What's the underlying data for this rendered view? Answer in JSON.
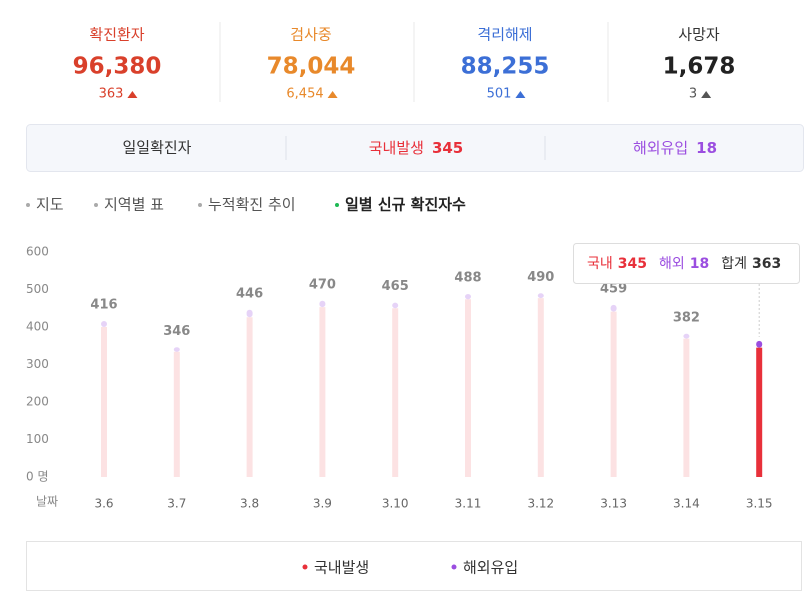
{
  "stats": [
    {
      "label": "확진환자",
      "value": "96,380",
      "change": "363",
      "color": "#d9402b"
    },
    {
      "label": "검사중",
      "value": "78,044",
      "change": "6,454",
      "color": "#e8892b"
    },
    {
      "label": "격리해제",
      "value": "88,255",
      "change": "501",
      "color": "#3c6fd6"
    },
    {
      "label": "사망자",
      "value": "1,678",
      "change": "3",
      "color": "#222222"
    }
  ],
  "tabs": {
    "title": "일일확진자",
    "domestic_label": "국내발생",
    "domestic_value": "345",
    "overseas_label": "해외유입",
    "overseas_value": "18"
  },
  "nav": [
    "지도",
    "지역별 표",
    "누적확진 추이",
    "일별 신규 확진자수"
  ],
  "chart_data": {
    "type": "bar",
    "stacked": true,
    "categories": [
      "3.6",
      "3.7",
      "3.8",
      "3.9",
      "3.10",
      "3.11",
      "3.12",
      "3.13",
      "3.14",
      "3.15"
    ],
    "series": [
      {
        "name": "국내발생",
        "color": "#e8303a",
        "values": [
          400,
          334,
          426,
          453,
          450,
          474,
          477,
          441,
          369,
          345
        ]
      },
      {
        "name": "해외유입",
        "color": "#9b4ee0",
        "values": [
          16,
          12,
          20,
          17,
          15,
          14,
          13,
          18,
          13,
          18
        ]
      }
    ],
    "totals": [
      416,
      346,
      446,
      470,
      465,
      488,
      490,
      459,
      382,
      363
    ],
    "ylim": [
      0,
      600
    ],
    "yticks": [
      {
        "value": 0,
        "label": "0 명"
      },
      100,
      200,
      300,
      400,
      500,
      600
    ],
    "xlabel": "날짜",
    "selected_index": 9,
    "tooltip": {
      "domestic": "국내",
      "overseas": "해외",
      "total": "합계"
    }
  }
}
